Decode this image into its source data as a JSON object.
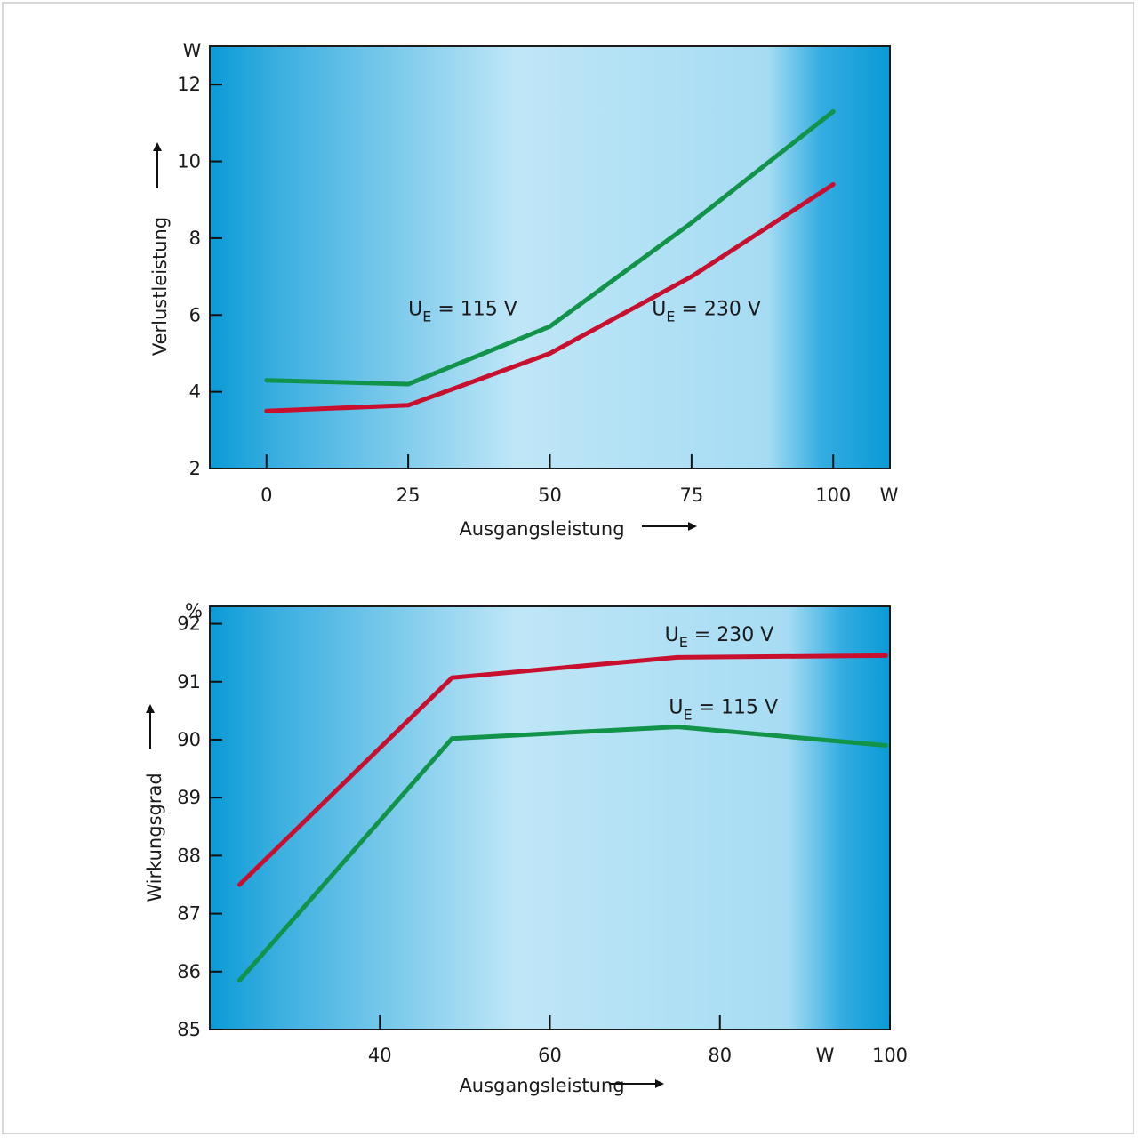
{
  "colors": {
    "series_115V": "#11934a",
    "series_230V": "#c8102e",
    "plot_edge": "#0a9ad6",
    "plot_center": "#bfe6f7",
    "frame": "#1b1b1b"
  },
  "chart_data": [
    {
      "type": "line",
      "unit_y": "W",
      "unit_x": "W",
      "ylabel": "Verlustleistung",
      "xlabel": "Ausgangsleistung",
      "xlim": [
        -10,
        110
      ],
      "ylim": [
        2,
        13
      ],
      "x_ticks": [
        "0",
        "25",
        "50",
        "75",
        "100"
      ],
      "x_tick_values": [
        0,
        25,
        50,
        75,
        100
      ],
      "y_ticks": [
        "2",
        "4",
        "6",
        "8",
        "10",
        "12"
      ],
      "y_tick_values": [
        2,
        4,
        6,
        8,
        10,
        12
      ],
      "grid": false,
      "series": [
        {
          "name": "115 V",
          "label_u": "U",
          "label_sub": "E",
          "label_rest": " = 115 V",
          "label_at": [
            25,
            6.0
          ],
          "color_key": "series_115V",
          "x": [
            0,
            25,
            50,
            75,
            100
          ],
          "y": [
            4.3,
            4.2,
            5.7,
            8.4,
            11.3
          ]
        },
        {
          "name": "230 V",
          "label_u": "U",
          "label_sub": "E",
          "label_rest": " = 230 V",
          "label_at": [
            68,
            6.0
          ],
          "color_key": "series_230V",
          "x": [
            0,
            25,
            50,
            75,
            100
          ],
          "y": [
            3.5,
            3.65,
            5.0,
            7.0,
            9.4
          ]
        }
      ]
    },
    {
      "type": "line",
      "unit_y": "%",
      "unit_x": "W",
      "ylabel": "Wirkungsgrad",
      "xlabel": "Ausgangsleistung",
      "xlim": [
        20,
        100
      ],
      "ylim": [
        85,
        92.3
      ],
      "x_ticks": [
        "40",
        "60",
        "80",
        "100"
      ],
      "x_tick_values": [
        40,
        60,
        80,
        100
      ],
      "y_ticks": [
        "85",
        "86",
        "87",
        "88",
        "89",
        "90",
        "91",
        "92"
      ],
      "y_tick_values": [
        85,
        86,
        87,
        88,
        89,
        90,
        91,
        92
      ],
      "grid": false,
      "series": [
        {
          "name": "230 V",
          "label_u": "U",
          "label_sub": "E",
          "label_rest": " = 230 V",
          "label_at": [
            73.5,
            91.7
          ],
          "color_key": "series_230V",
          "x": [
            23.5,
            48.5,
            75,
            99.5
          ],
          "y": [
            87.5,
            91.07,
            91.42,
            91.45
          ]
        },
        {
          "name": "115 V",
          "label_u": "U",
          "label_sub": "E",
          "label_rest": " = 115 V",
          "label_at": [
            74,
            90.45
          ],
          "color_key": "series_115V",
          "x": [
            23.5,
            48.5,
            75,
            99.5
          ],
          "y": [
            85.85,
            90.02,
            90.22,
            89.9
          ]
        }
      ]
    }
  ]
}
